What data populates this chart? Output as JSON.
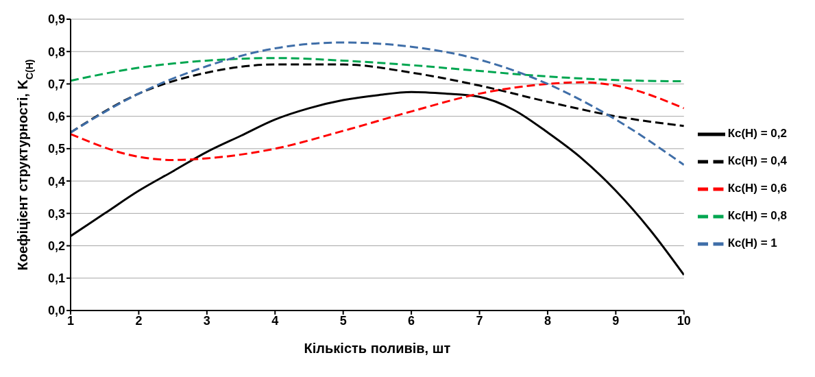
{
  "chart_data": {
    "type": "line",
    "xlabel": "Кількість поливів, шт",
    "ylabel": "Коефіцієнт структурності, K$_{C(H)}$",
    "xlim": [
      1,
      10
    ],
    "xticks": [
      1,
      2,
      3,
      4,
      5,
      6,
      7,
      8,
      9,
      10
    ],
    "ylim": [
      0,
      0.9
    ],
    "yticks": [
      {
        "value": 0,
        "label": "0,0"
      },
      {
        "value": 0.1,
        "label": "0,1"
      },
      {
        "value": 0.2,
        "label": "0,2"
      },
      {
        "value": 0.3,
        "label": "0,3"
      },
      {
        "value": 0.4,
        "label": "0,4"
      },
      {
        "value": 0.5,
        "label": "0,5"
      },
      {
        "value": 0.6,
        "label": "0,6"
      },
      {
        "value": 0.7,
        "label": "0,7"
      },
      {
        "value": 0.8,
        "label": "0,8"
      },
      {
        "value": 0.9,
        "label": "0,9"
      }
    ],
    "grid": "y",
    "legend": "right",
    "marker": "none",
    "series": [
      {
        "name": "Кс(Н) = 0,2",
        "color": "#000000",
        "line_style": "solid",
        "x": [
          1,
          1.5,
          2,
          2.5,
          3,
          3.5,
          4,
          4.5,
          5,
          5.5,
          6,
          6.5,
          7,
          7.5,
          8,
          8.5,
          9,
          9.5,
          10
        ],
        "values": [
          0.23,
          0.3,
          0.37,
          0.43,
          0.49,
          0.54,
          0.59,
          0.625,
          0.65,
          0.665,
          0.675,
          0.67,
          0.66,
          0.62,
          0.55,
          0.47,
          0.37,
          0.25,
          0.11
        ]
      },
      {
        "name": "Кс(Н) = 0,4",
        "color": "#000000",
        "line_style": "dashed",
        "x": [
          1,
          2,
          3,
          4,
          5,
          6,
          7,
          8,
          9,
          10
        ],
        "values": [
          0.55,
          0.67,
          0.735,
          0.76,
          0.76,
          0.735,
          0.695,
          0.645,
          0.6,
          0.57
        ]
      },
      {
        "name": "Кс(Н) = 0,6",
        "color": "#ff0000",
        "line_style": "dashed",
        "x": [
          1,
          2,
          2.5,
          3,
          4,
          5,
          6,
          7,
          8,
          8.5,
          9,
          10
        ],
        "values": [
          0.545,
          0.475,
          0.465,
          0.47,
          0.5,
          0.555,
          0.615,
          0.67,
          0.7,
          0.705,
          0.695,
          0.625
        ]
      },
      {
        "name": "Кс(Н) = 0,8",
        "color": "#00a650",
        "line_style": "dashed",
        "x": [
          1,
          2,
          3,
          4,
          5,
          6,
          7,
          8,
          9,
          10
        ],
        "values": [
          0.71,
          0.75,
          0.772,
          0.78,
          0.772,
          0.758,
          0.74,
          0.723,
          0.712,
          0.708
        ]
      },
      {
        "name": "Кс(Н) = 1",
        "color": "#3f6ea8",
        "line_style": "dashed",
        "x": [
          1,
          2,
          3,
          4,
          5,
          6,
          7,
          8,
          9,
          10
        ],
        "values": [
          0.55,
          0.67,
          0.755,
          0.81,
          0.828,
          0.815,
          0.775,
          0.7,
          0.59,
          0.45
        ]
      }
    ]
  }
}
